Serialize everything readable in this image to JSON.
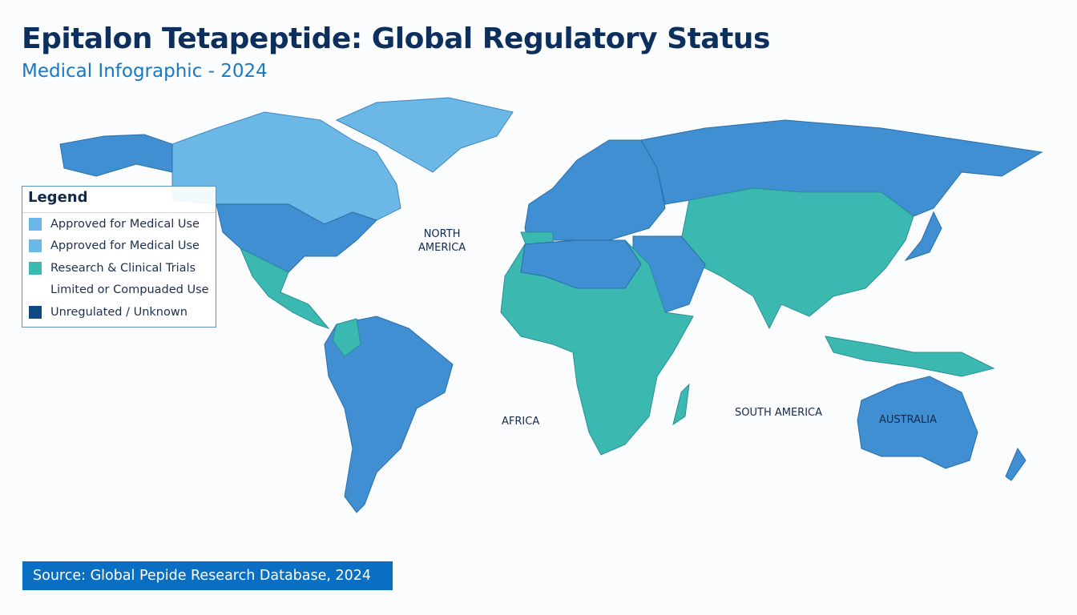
{
  "header": {
    "title": "Epitalon Tetapeptide: Global Regulatory Status",
    "subtitle": "Medical Infographic - 2024"
  },
  "legend": {
    "title": "Legend",
    "items": [
      {
        "label": "Approved for Medical Use",
        "color": "#6bb8e6"
      },
      {
        "label": "Approved for Medical Use",
        "color": "#6bb8e6"
      },
      {
        "label": "Research & Clinical Trials",
        "color": "#3bb8b0"
      },
      {
        "label": "Limited or Compuaded Use",
        "color": ""
      },
      {
        "label": "Unregulated / Unknown",
        "color": "#0e4a80"
      }
    ]
  },
  "map_labels": {
    "north_america": "NORTH\nAMERICA",
    "africa": "AFRICA",
    "south_america": "SOUTH AMERICA",
    "australia": "AUSTRALIA"
  },
  "colors": {
    "light_blue": "#6bb8e6",
    "mid_blue": "#3f8fd2",
    "teal": "#3bb8b0",
    "dark_blue": "#0e4a80"
  },
  "footer": {
    "source": "Source: Global Pepide Research Database, 2024"
  }
}
